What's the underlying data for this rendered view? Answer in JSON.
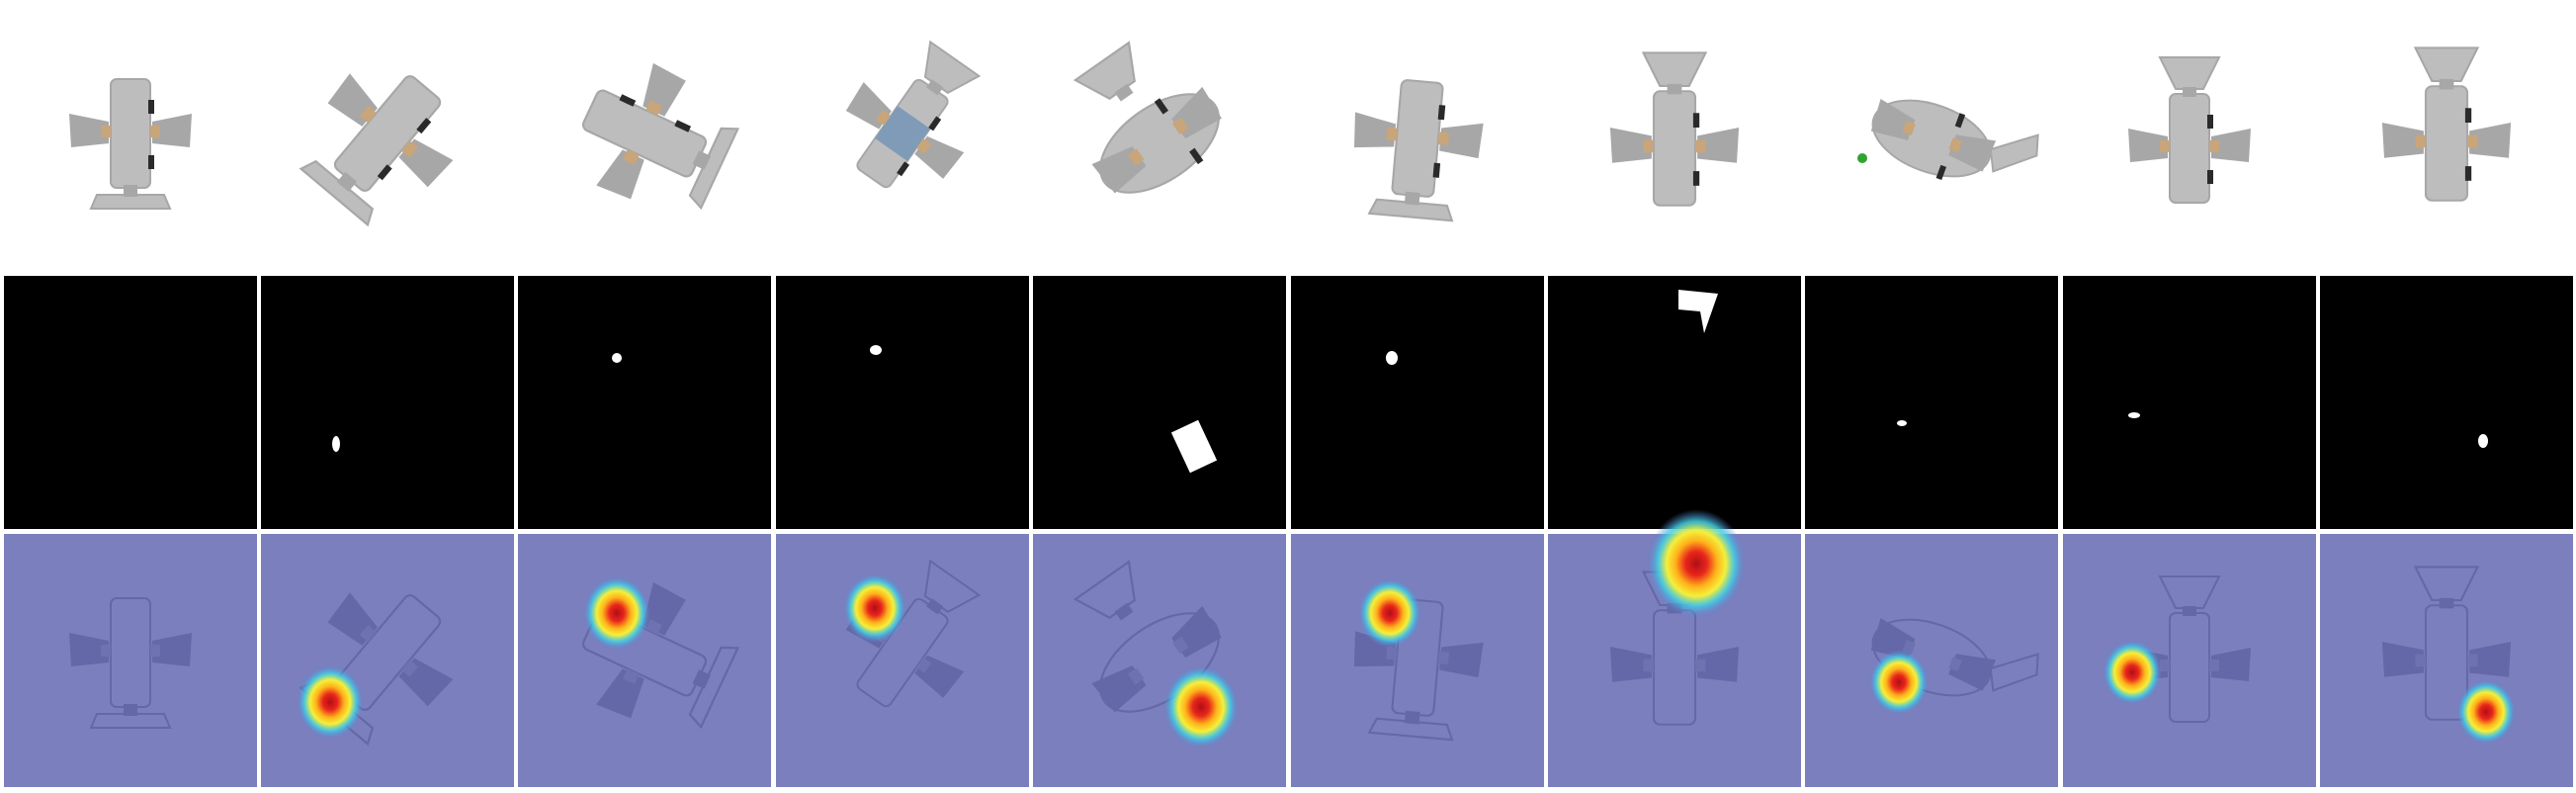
{
  "figure": {
    "rows": [
      {
        "kind": "render"
      },
      {
        "kind": "mask"
      },
      {
        "kind": "heatmap-overlay"
      }
    ],
    "colors": {
      "page_background": "#ffffff",
      "object_gray": "#bdbdbd",
      "object_gray_shade": "#a7a7a7",
      "joint_tan": "#c9a57a",
      "dark_axle": "#2a2a2a",
      "blue_panel": "#7f9bb8",
      "mask_background": "#000000",
      "mask_foreground": "#ffffff",
      "overlay_tint": "#7b7fbd",
      "heat_hot": "#d4161c",
      "heat_warm": "#ffd21f",
      "heat_cool": "#2fc6e8"
    },
    "columns": [
      {
        "orientation": "upright-wheels-right",
        "mask_present": false,
        "heat_spot": false
      },
      {
        "orientation": "diagonal-tail-lower-right",
        "mask_present": true,
        "heat_spot": true
      },
      {
        "orientation": "diagonal-tail-lower-left",
        "mask_present": true,
        "heat_spot": true
      },
      {
        "orientation": "diagonal-blue-panel",
        "mask_present": true,
        "heat_spot": true
      },
      {
        "orientation": "rounded-body-tail-upper-right",
        "mask_present": true,
        "heat_spot": true
      },
      {
        "orientation": "vertical-tail-down",
        "mask_present": true,
        "heat_spot": true
      },
      {
        "orientation": "vertical-tail-up",
        "mask_present": true,
        "heat_spot": true
      },
      {
        "orientation": "rounded-body-green-dot",
        "mask_present": true,
        "heat_spot": true
      },
      {
        "orientation": "vertical-tail-up-short",
        "mask_present": true,
        "heat_spot": true
      },
      {
        "orientation": "vertical-tail-up-tall",
        "mask_present": true,
        "heat_spot": true
      }
    ]
  }
}
